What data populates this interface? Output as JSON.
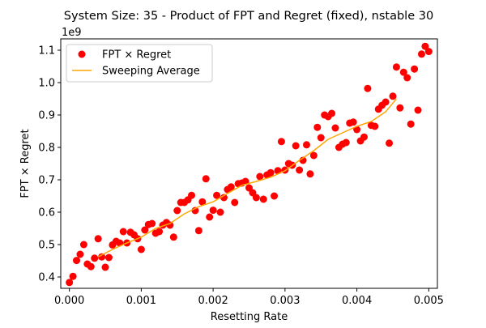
{
  "chart_data": {
    "type": "scatter",
    "title": "System Size: 35 - Product of FPT and Regret (fixed), nstable 30",
    "xlabel": "Resetting Rate",
    "ylabel": "FPT × Regret",
    "y_offset_label": "1e9",
    "xlim": [
      -0.00012,
      0.00512
    ],
    "ylim": [
      0.365,
      1.135
    ],
    "xticks": [
      0.0,
      0.001,
      0.002,
      0.003,
      0.004,
      0.005
    ],
    "xtick_labels": [
      "0.000",
      "0.001",
      "0.002",
      "0.003",
      "0.004",
      "0.005"
    ],
    "yticks": [
      0.4,
      0.5,
      0.6,
      0.7,
      0.8,
      0.9,
      1.0,
      1.1
    ],
    "ytick_labels": [
      "0.4",
      "0.5",
      "0.6",
      "0.7",
      "0.8",
      "0.9",
      "1.0",
      "1.1"
    ],
    "legend_position": "upper-left",
    "grid": false,
    "series": [
      {
        "name": "FPT × Regret",
        "kind": "scatter",
        "color": "#ff0000",
        "points": [
          [
            0.0,
            0.383
          ],
          [
            5e-05,
            0.402
          ],
          [
            0.0001,
            0.451
          ],
          [
            0.00015,
            0.47
          ],
          [
            0.0002,
            0.5
          ],
          [
            0.00025,
            0.44
          ],
          [
            0.0003,
            0.432
          ],
          [
            0.00035,
            0.458
          ],
          [
            0.0004,
            0.518
          ],
          [
            0.00045,
            0.462
          ],
          [
            0.0005,
            0.43
          ],
          [
            0.00055,
            0.46
          ],
          [
            0.0006,
            0.499
          ],
          [
            0.00065,
            0.51
          ],
          [
            0.0007,
            0.505
          ],
          [
            0.00075,
            0.54
          ],
          [
            0.0008,
            0.505
          ],
          [
            0.00085,
            0.538
          ],
          [
            0.0009,
            0.53
          ],
          [
            0.00095,
            0.518
          ],
          [
            0.001,
            0.485
          ],
          [
            0.00105,
            0.545
          ],
          [
            0.0011,
            0.562
          ],
          [
            0.00115,
            0.565
          ],
          [
            0.0012,
            0.535
          ],
          [
            0.00125,
            0.54
          ],
          [
            0.0013,
            0.56
          ],
          [
            0.00135,
            0.568
          ],
          [
            0.0014,
            0.56
          ],
          [
            0.00145,
            0.523
          ],
          [
            0.0015,
            0.605
          ],
          [
            0.00155,
            0.63
          ],
          [
            0.0016,
            0.63
          ],
          [
            0.00165,
            0.638
          ],
          [
            0.0017,
            0.652
          ],
          [
            0.00175,
            0.605
          ],
          [
            0.0018,
            0.543
          ],
          [
            0.00185,
            0.632
          ],
          [
            0.0019,
            0.703
          ],
          [
            0.00195,
            0.585
          ],
          [
            0.002,
            0.606
          ],
          [
            0.00205,
            0.652
          ],
          [
            0.0021,
            0.6
          ],
          [
            0.00215,
            0.645
          ],
          [
            0.0022,
            0.67
          ],
          [
            0.00225,
            0.678
          ],
          [
            0.0023,
            0.63
          ],
          [
            0.00235,
            0.688
          ],
          [
            0.0024,
            0.69
          ],
          [
            0.00245,
            0.695
          ],
          [
            0.0025,
            0.675
          ],
          [
            0.00255,
            0.66
          ],
          [
            0.0026,
            0.645
          ],
          [
            0.00265,
            0.71
          ],
          [
            0.0027,
            0.64
          ],
          [
            0.00275,
            0.715
          ],
          [
            0.0028,
            0.722
          ],
          [
            0.00285,
            0.65
          ],
          [
            0.0029,
            0.728
          ],
          [
            0.00295,
            0.818
          ],
          [
            0.003,
            0.73
          ],
          [
            0.00305,
            0.75
          ],
          [
            0.0031,
            0.745
          ],
          [
            0.00315,
            0.805
          ],
          [
            0.0032,
            0.73
          ],
          [
            0.00325,
            0.76
          ],
          [
            0.0033,
            0.808
          ],
          [
            0.00335,
            0.718
          ],
          [
            0.0034,
            0.775
          ],
          [
            0.00345,
            0.862
          ],
          [
            0.0035,
            0.83
          ],
          [
            0.00355,
            0.9
          ],
          [
            0.0036,
            0.895
          ],
          [
            0.00365,
            0.905
          ],
          [
            0.0037,
            0.86
          ],
          [
            0.00375,
            0.8
          ],
          [
            0.0038,
            0.81
          ],
          [
            0.00385,
            0.815
          ],
          [
            0.0039,
            0.875
          ],
          [
            0.00395,
            0.878
          ],
          [
            0.004,
            0.855
          ],
          [
            0.00405,
            0.82
          ],
          [
            0.0041,
            0.832
          ],
          [
            0.00415,
            0.982
          ],
          [
            0.0042,
            0.868
          ],
          [
            0.00425,
            0.865
          ],
          [
            0.0043,
            0.918
          ],
          [
            0.00435,
            0.93
          ],
          [
            0.0044,
            0.94
          ],
          [
            0.00445,
            0.813
          ],
          [
            0.0045,
            0.958
          ],
          [
            0.00455,
            1.048
          ],
          [
            0.0046,
            0.922
          ],
          [
            0.00465,
            1.032
          ],
          [
            0.0047,
            1.015
          ],
          [
            0.00475,
            0.872
          ],
          [
            0.0048,
            1.042
          ],
          [
            0.00485,
            0.915
          ],
          [
            0.0049,
            1.088
          ],
          [
            0.00495,
            1.112
          ],
          [
            0.005,
            1.096
          ]
        ]
      },
      {
        "name": "Sweeping Average",
        "kind": "line",
        "color": "#ffa500",
        "points": [
          [
            0.0004,
            0.462
          ],
          [
            0.0006,
            0.485
          ],
          [
            0.0008,
            0.505
          ],
          [
            0.001,
            0.523
          ],
          [
            0.0012,
            0.55
          ],
          [
            0.0014,
            0.565
          ],
          [
            0.0016,
            0.595
          ],
          [
            0.0018,
            0.617
          ],
          [
            0.002,
            0.632
          ],
          [
            0.0022,
            0.658
          ],
          [
            0.0024,
            0.683
          ],
          [
            0.0026,
            0.695
          ],
          [
            0.0028,
            0.708
          ],
          [
            0.003,
            0.728
          ],
          [
            0.0032,
            0.76
          ],
          [
            0.0034,
            0.79
          ],
          [
            0.0036,
            0.825
          ],
          [
            0.0038,
            0.845
          ],
          [
            0.004,
            0.865
          ],
          [
            0.0042,
            0.88
          ],
          [
            0.0044,
            0.91
          ],
          [
            0.00455,
            0.95
          ]
        ]
      }
    ]
  }
}
